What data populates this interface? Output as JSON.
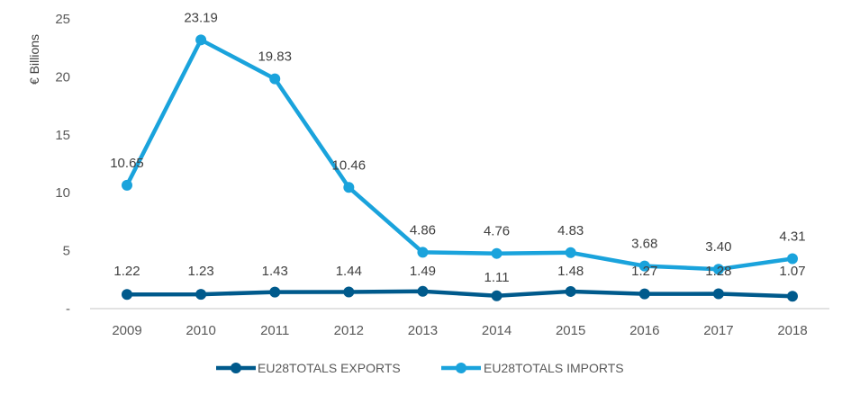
{
  "chart_data": {
    "type": "line",
    "title": "",
    "xlabel": "",
    "ylabel": "€ Billions",
    "ylim": [
      0,
      25
    ],
    "yticks": [
      0,
      5,
      10,
      15,
      20,
      25
    ],
    "ytick_labels": [
      "-",
      "5",
      "10",
      "15",
      "20",
      "25"
    ],
    "grid": false,
    "legend_position": "bottom",
    "categories": [
      "2009",
      "2010",
      "2011",
      "2012",
      "2013",
      "2014",
      "2015",
      "2016",
      "2017",
      "2018"
    ],
    "series": [
      {
        "name": "EU28TOTALS EXPORTS",
        "color": "#005a8c",
        "values": [
          1.22,
          1.23,
          1.43,
          1.44,
          1.49,
          1.11,
          1.48,
          1.27,
          1.28,
          1.07
        ],
        "labels": [
          "1.22",
          "1.23",
          "1.43",
          "1.44",
          "1.49",
          "1.11",
          "1.48",
          "1.27",
          "1.28",
          "1.07"
        ]
      },
      {
        "name": "EU28TOTALS IMPORTS",
        "color": "#1aa3dc",
        "values": [
          10.65,
          23.19,
          19.83,
          10.46,
          4.86,
          4.76,
          4.83,
          3.68,
          3.4,
          4.31
        ],
        "labels": [
          "10.65",
          "23.19",
          "19.83",
          "10.46",
          "4.86",
          "4.76",
          "4.83",
          "3.68",
          "3.40",
          "4.31"
        ]
      }
    ]
  }
}
